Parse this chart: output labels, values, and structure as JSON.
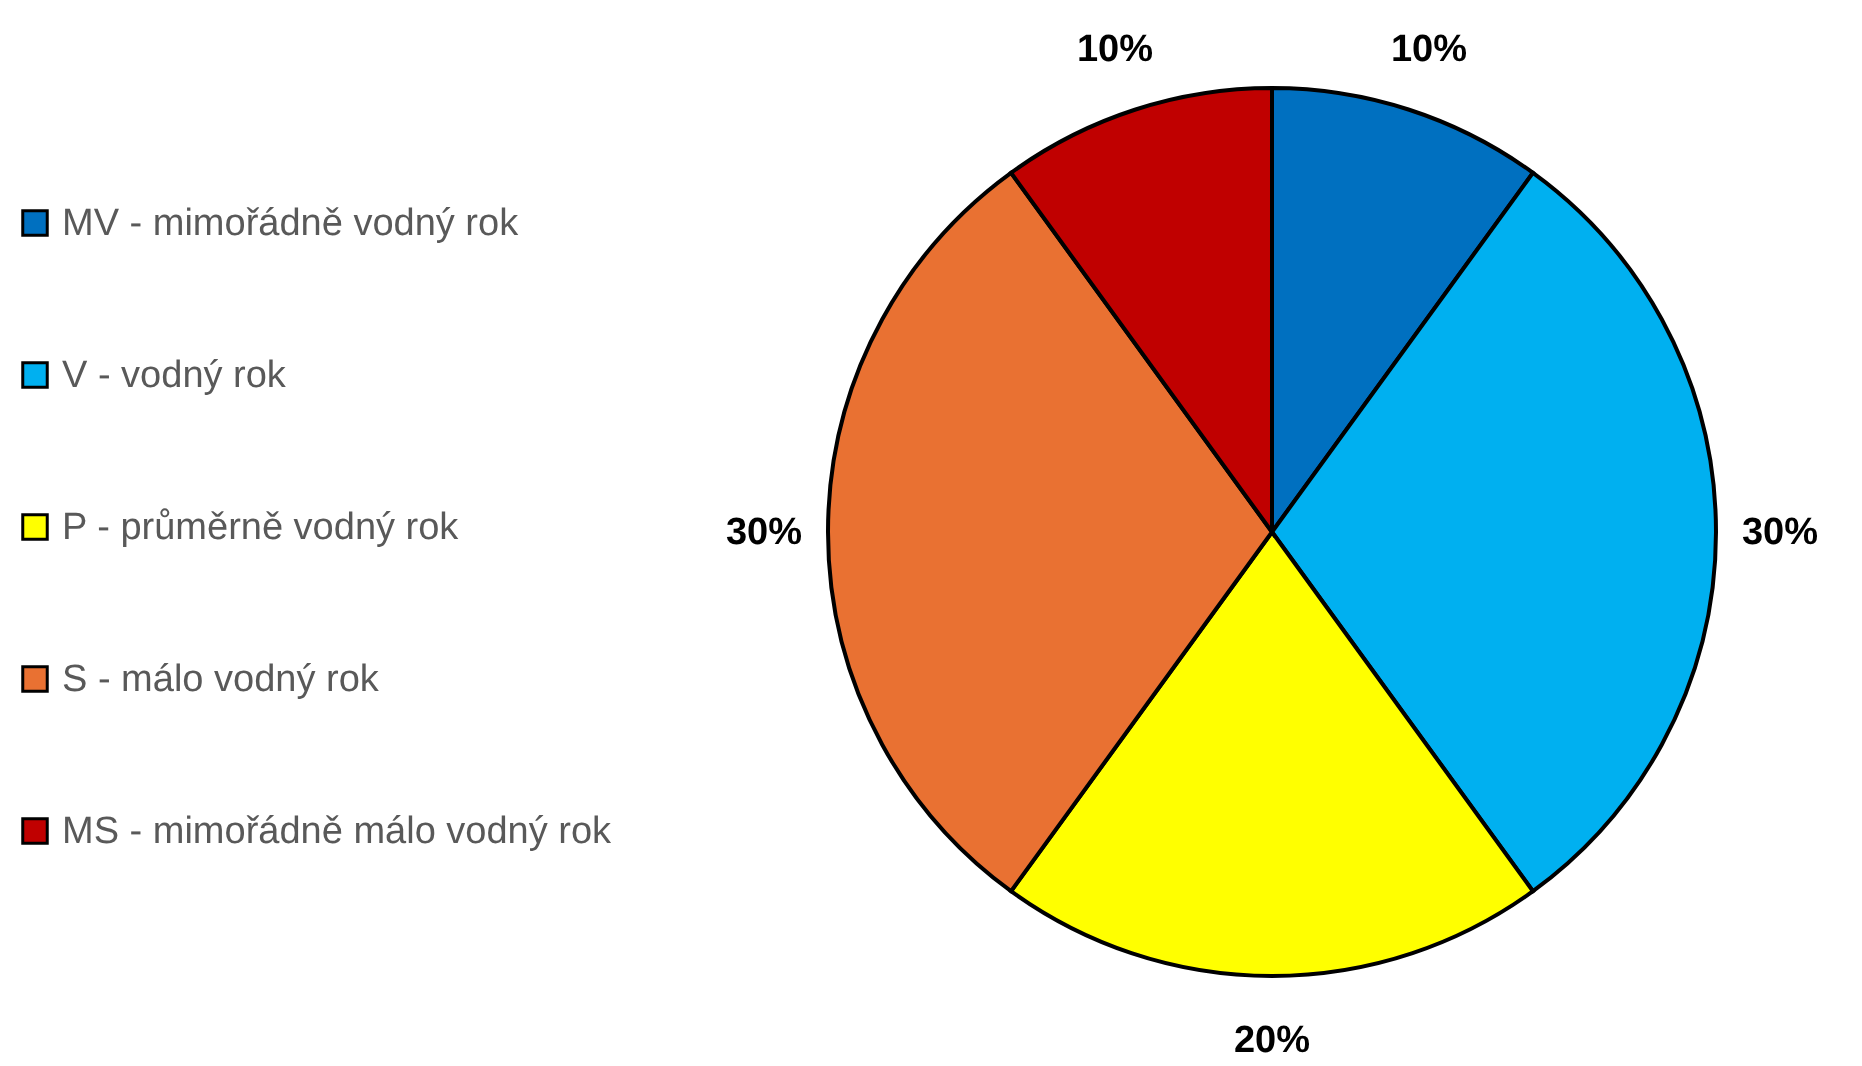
{
  "chart_data": {
    "type": "pie",
    "categories": [
      "MV - mimořádně vodný rok",
      "V - vodný rok",
      "P - průměrně vodný rok",
      "S - málo vodný rok",
      "MS - mimořádně málo vodný rok"
    ],
    "values": [
      10,
      30,
      20,
      30,
      10
    ],
    "colors": [
      "#0070c0",
      "#00b0f0",
      "#ffff00",
      "#e97132",
      "#c00000"
    ],
    "value_labels": [
      "10%",
      "30%",
      "20%",
      "30%",
      "10%"
    ],
    "legend": "left"
  }
}
